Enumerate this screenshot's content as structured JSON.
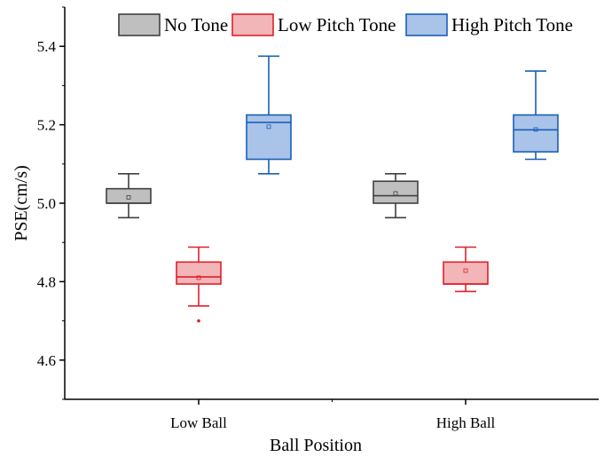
{
  "chart_data": {
    "type": "box",
    "title": "",
    "xlabel": "Ball Position",
    "ylabel": "PSE(cm/s)",
    "categories": [
      "Low Ball",
      "High Ball"
    ],
    "ylim": [
      4.5,
      5.5
    ],
    "yticks": [
      "4.6",
      "4.8",
      "5.0",
      "5.2",
      "5.4"
    ],
    "y_minor_tick_step": 0.1,
    "grid": false,
    "legend_position": "top",
    "series": [
      {
        "name": "No Tone",
        "fill": "#c0bfc0",
        "stroke": "#404040",
        "boxes": [
          {
            "category": "Low Ball",
            "whisker_low": 4.963,
            "q1": 5.0,
            "median": 5.0,
            "q3": 5.037,
            "whisker_high": 5.075,
            "mean": 5.015,
            "outliers": []
          },
          {
            "category": "High Ball",
            "whisker_low": 4.963,
            "q1": 5.0,
            "median": 5.019,
            "q3": 5.056,
            "whisker_high": 5.075,
            "mean": 5.025,
            "outliers": []
          }
        ]
      },
      {
        "name": "Low Pitch Tone",
        "fill": "#f2b5b8",
        "stroke": "#e0202a",
        "boxes": [
          {
            "category": "Low Ball",
            "whisker_low": 4.738,
            "q1": 4.794,
            "median": 4.812,
            "q3": 4.85,
            "whisker_high": 4.888,
            "mean": 4.81,
            "outliers": [
              4.7
            ]
          },
          {
            "category": "High Ball",
            "whisker_low": 4.775,
            "q1": 4.794,
            "median": 4.794,
            "q3": 4.85,
            "whisker_high": 4.888,
            "mean": 4.828,
            "outliers": []
          }
        ]
      },
      {
        "name": "High Pitch Tone",
        "fill": "#a9c4e8",
        "stroke": "#1a5eb8",
        "boxes": [
          {
            "category": "Low Ball",
            "whisker_low": 5.075,
            "q1": 5.112,
            "median": 5.206,
            "q3": 5.225,
            "whisker_high": 5.375,
            "mean": 5.195,
            "outliers": []
          },
          {
            "category": "High Ball",
            "whisker_low": 5.112,
            "q1": 5.131,
            "median": 5.187,
            "q3": 5.225,
            "whisker_high": 5.337,
            "mean": 5.188,
            "outliers": []
          }
        ]
      }
    ]
  }
}
